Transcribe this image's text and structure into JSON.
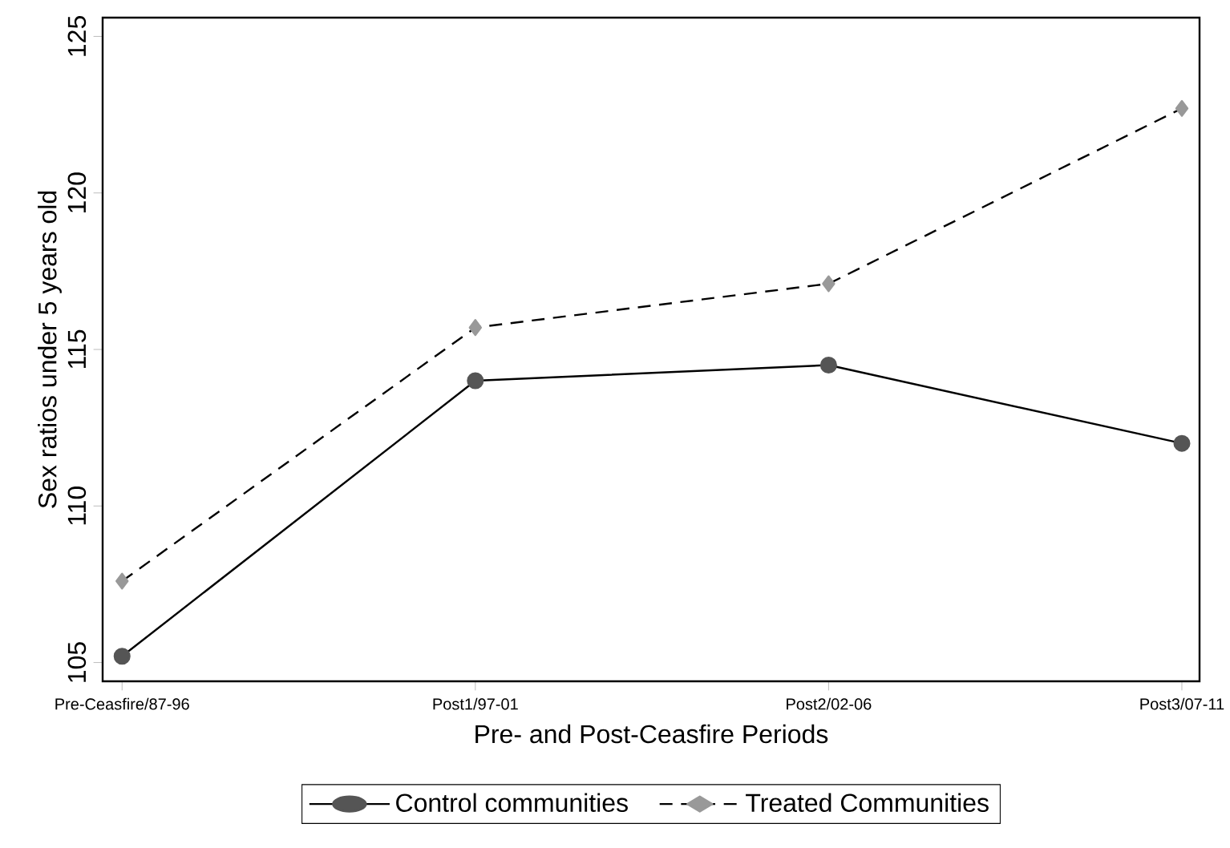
{
  "chart_data": {
    "type": "line",
    "xlabel": "Pre- and Post-Ceasfire Periods",
    "ylabel": "Sex ratios under 5 years old",
    "categories": [
      "Pre-Ceasfire/87-96",
      "Post1/97-01",
      "Post2/02-06",
      "Post3/07-11"
    ],
    "ylim": [
      104.4,
      125.6
    ],
    "yticks": [
      105,
      110,
      115,
      120,
      125
    ],
    "grid": false,
    "legend": "bottom",
    "series": [
      {
        "name": "Control communities",
        "color": "#555555",
        "marker": "circle",
        "line_style": "solid",
        "values": [
          105.2,
          114.0,
          114.5,
          112.0
        ]
      },
      {
        "name": "Treated Communities",
        "color": "#999999",
        "marker": "diamond",
        "line_style": "dashed",
        "values": [
          107.6,
          115.7,
          117.1,
          122.7
        ]
      }
    ]
  }
}
